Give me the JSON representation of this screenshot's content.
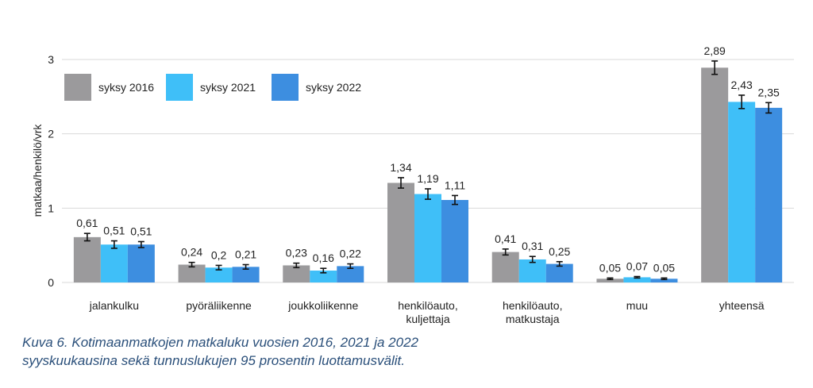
{
  "chart_data": {
    "type": "bar",
    "ylabel": "matkaa/henkilö/vrk",
    "xlabel": "",
    "ylim": [
      0,
      3
    ],
    "yticks": [
      "0",
      "1",
      "2",
      "3"
    ],
    "grid": true,
    "legend_position": "top-left",
    "categories": [
      [
        "jalankulku"
      ],
      [
        "pyöräliikenne"
      ],
      [
        "joukkoliikenne"
      ],
      [
        "henkilöauto,",
        "kuljettaja"
      ],
      [
        "henkilöauto,",
        "matkustaja"
      ],
      [
        "muu"
      ],
      [
        "yhteensä"
      ]
    ],
    "series": [
      {
        "name": "syksy 2016",
        "color": "#9b9a9c",
        "values": [
          0.61,
          0.24,
          0.23,
          1.34,
          0.41,
          0.05,
          2.89
        ],
        "labels": [
          "0,61",
          "0,24",
          "0,23",
          "1,34",
          "0,41",
          "0,05",
          "2,89"
        ],
        "error": [
          0.05,
          0.03,
          0.03,
          0.07,
          0.04,
          0.01,
          0.09
        ]
      },
      {
        "name": "syksy 2021",
        "color": "#3fbff8",
        "values": [
          0.51,
          0.2,
          0.16,
          1.19,
          0.31,
          0.07,
          2.43
        ],
        "labels": [
          "0,51",
          "0,2",
          "0,16",
          "1,19",
          "0,31",
          "0,07",
          "2,43"
        ],
        "error": [
          0.05,
          0.03,
          0.03,
          0.07,
          0.04,
          0.01,
          0.09
        ]
      },
      {
        "name": "syksy 2022",
        "color": "#3d8ee0",
        "values": [
          0.51,
          0.21,
          0.22,
          1.11,
          0.25,
          0.05,
          2.35
        ],
        "labels": [
          "0,51",
          "0,21",
          "0,22",
          "1,11",
          "0,25",
          "0,05",
          "2,35"
        ],
        "error": [
          0.04,
          0.03,
          0.03,
          0.06,
          0.03,
          0.01,
          0.07
        ]
      }
    ]
  },
  "caption": {
    "line1": "Kuva 6. Kotimaanmatkojen matkaluku vuosien 2016, 2021 ja 2022",
    "line2": "syyskuukausina sekä tunnuslukujen 95 prosentin luottamusvälit."
  }
}
